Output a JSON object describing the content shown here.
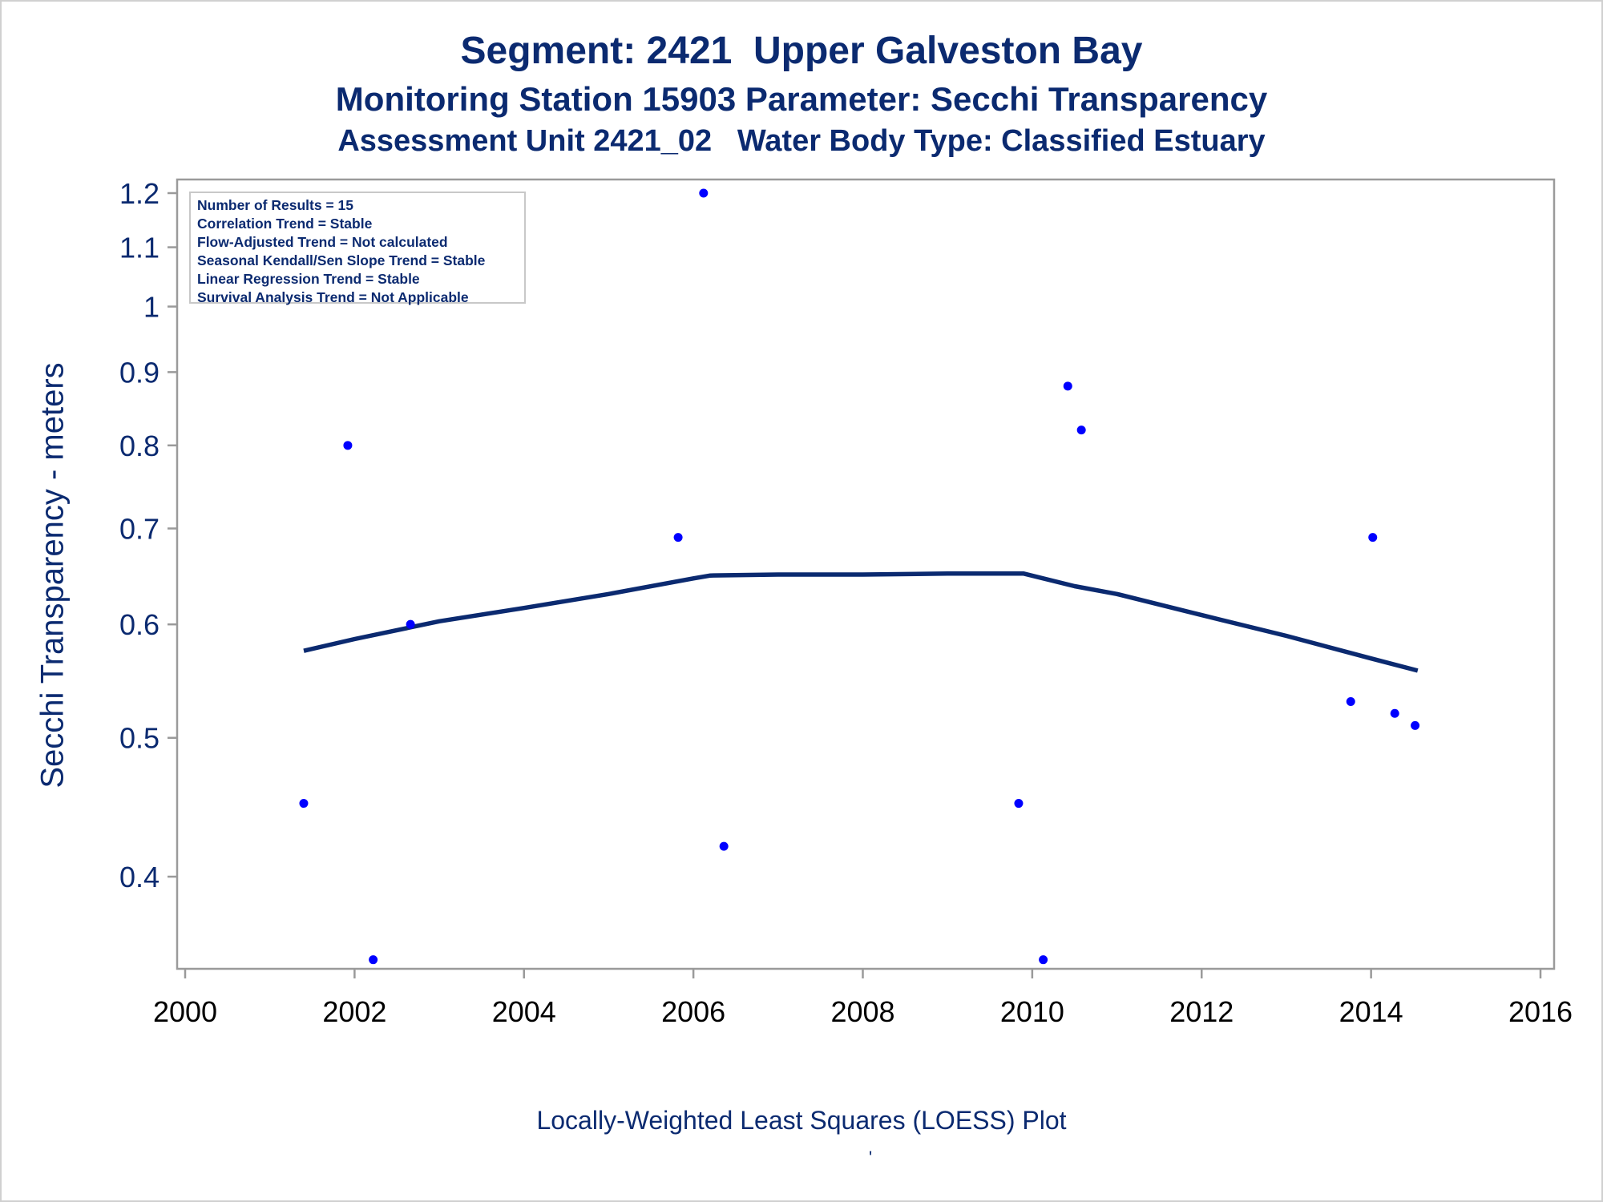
{
  "titles": {
    "line1": "Segment: 2421  Upper Galveston Bay",
    "line2": "Monitoring Station 15903 Parameter: Secchi Transparency",
    "line3": "Assessment Unit 2421_02   Water Body Type: Classified Estuary"
  },
  "stats_box": {
    "lines": [
      "Number of Results = 15",
      "Correlation Trend = Stable",
      "Flow-Adjusted Trend = Not calculated",
      "Seasonal Kendall/Sen Slope Trend = Stable",
      "Linear Regression Trend = Stable",
      "Survival Analysis Trend = Not Applicable"
    ]
  },
  "footnote": "Locally-Weighted Least Squares (LOESS) Plot",
  "footnote_mark": "'",
  "colors": {
    "text": "#0b2a70",
    "points": "#0000ff",
    "loess_line": "#0b2a70",
    "axis": "#9a9a9a"
  },
  "chart_data": {
    "type": "scatter",
    "title": "Segment: 2421  Upper Galveston Bay",
    "xlabel": "",
    "ylabel": "Secchi Transparency - meters",
    "y_scale": "log",
    "xlim": [
      2000,
      2016
    ],
    "ylim": [
      0.34,
      1.23
    ],
    "x_ticks": [
      2000,
      2002,
      2004,
      2006,
      2008,
      2010,
      2012,
      2014,
      2016
    ],
    "y_ticks": [
      0.4,
      0.5,
      0.6,
      0.7,
      0.8,
      0.9,
      1,
      1.1,
      1.2
    ],
    "y_tick_labels": [
      "0.4",
      "0.5",
      "0.6",
      "0.7",
      "0.8",
      "0.9",
      "1",
      "1.1",
      "1.2"
    ],
    "grid": false,
    "series": [
      {
        "kind": "points",
        "x": [
          2001.4,
          2001.92,
          2002.22,
          2002.66,
          2005.82,
          2006.12,
          2006.36,
          2009.84,
          2010.13,
          2010.42,
          2010.58,
          2013.76,
          2014.02,
          2014.28,
          2014.52
        ],
        "y": [
          0.45,
          0.8,
          0.35,
          0.6,
          0.69,
          1.2,
          0.42,
          0.45,
          0.35,
          0.88,
          0.82,
          0.53,
          0.69,
          0.52,
          0.51
        ]
      },
      {
        "kind": "loess",
        "x": [
          2001.4,
          2002.0,
          2003.0,
          2004.0,
          2005.0,
          2006.0,
          2006.2,
          2007.0,
          2008.0,
          2009.0,
          2009.9,
          2010.5,
          2011.0,
          2012.0,
          2013.0,
          2014.0,
          2014.55
        ],
        "y": [
          0.575,
          0.586,
          0.603,
          0.616,
          0.63,
          0.646,
          0.649,
          0.65,
          0.65,
          0.651,
          0.651,
          0.638,
          0.63,
          0.609,
          0.589,
          0.568,
          0.557
        ]
      }
    ]
  }
}
